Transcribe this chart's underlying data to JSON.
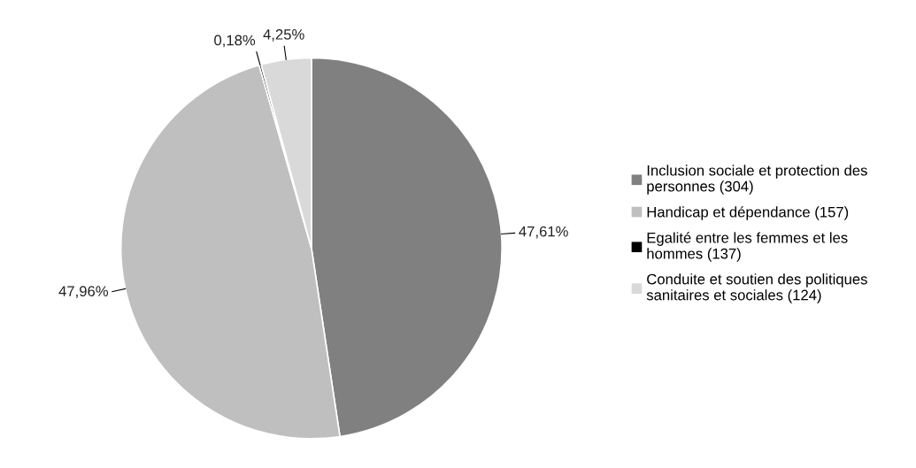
{
  "chart_data": {
    "type": "pie",
    "categories": [
      "Inclusion sociale et protection des\npersonnes (304)",
      "Handicap et dépendance (157)",
      "Egalité entre les femmes et les\nhommes (137)",
      "Conduite et soutien des politiques\nsanitaires et sociales (124)"
    ],
    "values": [
      47.61,
      47.96,
      0.18,
      4.25
    ],
    "colors": [
      "#808080",
      "#bfbfbf",
      "#000000",
      "#d9d9d9"
    ],
    "value_labels": [
      "47,61%",
      "47,96%",
      "0,18%",
      "4,25%"
    ],
    "legend": "right"
  }
}
